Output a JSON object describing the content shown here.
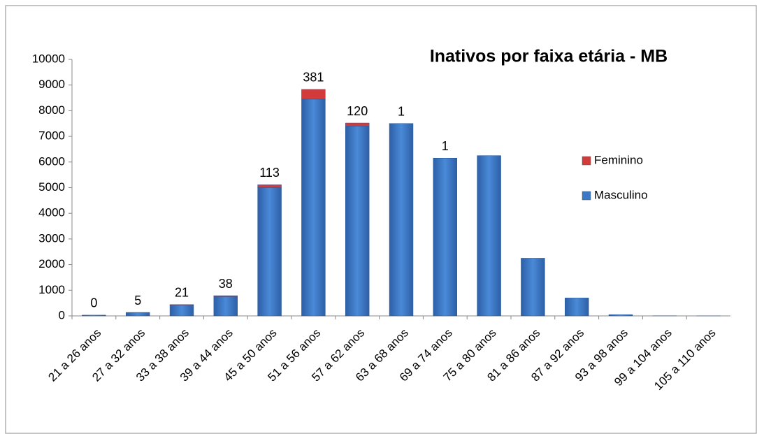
{
  "chart_data": {
    "type": "stacked_bar",
    "title": "Inativos por faixa etária - MB",
    "categories": [
      "21 a 26 anos",
      "27 a 32 anos",
      "33 a 38 anos",
      "39 a 44 anos",
      "45 a 50 anos",
      "51 a 56 anos",
      "57 a 62 anos",
      "63 a 68 anos",
      "69 a 74 anos",
      "75 a 80 anos",
      "81 a 86 anos",
      "87 a 92 anos",
      "93 a 98 anos",
      "99 a 104 anos",
      "105 a 110 anos"
    ],
    "series": [
      {
        "name": "Masculino",
        "color": "#3b78c6",
        "values": [
          30,
          130,
          420,
          750,
          5000,
          8450,
          7400,
          7500,
          6150,
          6250,
          2250,
          700,
          50,
          5,
          2
        ]
      },
      {
        "name": "Feminino",
        "color": "#d33a3a",
        "values": [
          0,
          5,
          21,
          38,
          113,
          381,
          120,
          1,
          1,
          null,
          null,
          null,
          null,
          null,
          null
        ]
      }
    ],
    "ylim": [
      0,
      10000
    ],
    "yticks": [
      0,
      1000,
      2000,
      3000,
      4000,
      5000,
      6000,
      7000,
      8000,
      9000,
      10000
    ],
    "legend": "right",
    "grid": false
  }
}
